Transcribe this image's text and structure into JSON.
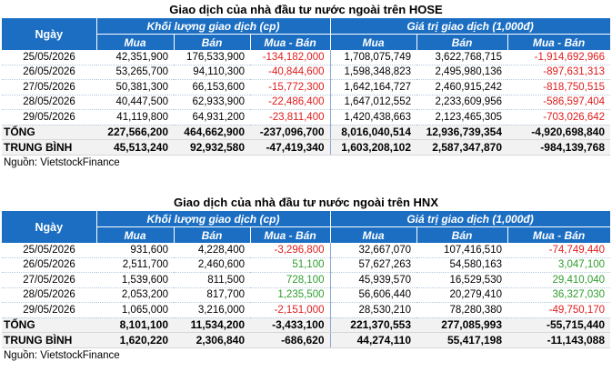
{
  "colors": {
    "header_bg": "#1b6ec2",
    "negative": "#e01b1b",
    "positive": "#2e9e2e"
  },
  "hose": {
    "title": "Giao dịch của nhà đầu tư nước ngoài trên HOSE",
    "header_day": "Ngày",
    "group_volume": "Khối lượng giao dịch (cp)",
    "group_value": "Giá trị giao dịch (1,000đ)",
    "sub": [
      "Mua",
      "Bán",
      "Mua - Bán",
      "Mua",
      "Bán",
      "Mua - Bán"
    ],
    "rows": [
      {
        "date": "25/05/2026",
        "vals": [
          "42,351,900",
          "176,533,900",
          "-134,182,000",
          "1,708,075,749",
          "3,622,768,715",
          "-1,914,692,966"
        ],
        "signs": [
          "",
          "",
          "neg",
          "",
          "",
          "neg"
        ]
      },
      {
        "date": "26/05/2026",
        "vals": [
          "53,265,700",
          "94,110,300",
          "-40,844,600",
          "1,598,348,823",
          "2,495,980,136",
          "-897,631,313"
        ],
        "signs": [
          "",
          "",
          "neg",
          "",
          "",
          "neg"
        ]
      },
      {
        "date": "27/05/2026",
        "vals": [
          "50,381,300",
          "66,153,600",
          "-15,772,300",
          "1,642,164,727",
          "2,460,915,242",
          "-818,750,515"
        ],
        "signs": [
          "",
          "",
          "neg",
          "",
          "",
          "neg"
        ]
      },
      {
        "date": "28/05/2026",
        "vals": [
          "40,447,500",
          "62,933,900",
          "-22,486,400",
          "1,647,012,552",
          "2,233,609,956",
          "-586,597,404"
        ],
        "signs": [
          "",
          "",
          "neg",
          "",
          "",
          "neg"
        ]
      },
      {
        "date": "29/05/2026",
        "vals": [
          "41,119,800",
          "64,931,200",
          "-23,811,400",
          "1,420,438,663",
          "2,123,465,305",
          "-703,026,642"
        ],
        "signs": [
          "",
          "",
          "neg",
          "",
          "",
          "neg"
        ]
      }
    ],
    "total": {
      "label": "TỔNG",
      "vals": [
        "227,566,200",
        "464,662,900",
        "-237,096,700",
        "8,016,040,514",
        "12,936,739,354",
        "-4,920,698,840"
      ]
    },
    "average": {
      "label": "TRUNG BÌNH",
      "vals": [
        "45,513,240",
        "92,932,580",
        "-47,419,340",
        "1,603,208,102",
        "2,587,347,870",
        "-984,139,768"
      ]
    },
    "source": "Nguồn: VietstockFinance"
  },
  "hnx": {
    "title": "Giao dịch của nhà đầu tư nước ngoài trên HNX",
    "header_day": "Ngày",
    "group_volume": "Khối lượng giao dịch (cp)",
    "group_value": "Giá trị giao dịch (1,000đ)",
    "sub": [
      "Mua",
      "Bán",
      "Mua - Bán",
      "Mua",
      "Bán",
      "Mua - Bán"
    ],
    "rows": [
      {
        "date": "25/05/2026",
        "vals": [
          "931,600",
          "4,228,400",
          "-3,296,800",
          "32,667,070",
          "107,416,510",
          "-74,749,440"
        ],
        "signs": [
          "",
          "",
          "neg",
          "",
          "",
          "neg"
        ]
      },
      {
        "date": "26/05/2026",
        "vals": [
          "2,511,700",
          "2,460,600",
          "51,100",
          "57,627,263",
          "54,580,163",
          "3,047,100"
        ],
        "signs": [
          "",
          "",
          "pos",
          "",
          "",
          "pos"
        ]
      },
      {
        "date": "27/05/2026",
        "vals": [
          "1,539,600",
          "811,500",
          "728,100",
          "45,939,570",
          "16,529,530",
          "29,410,040"
        ],
        "signs": [
          "",
          "",
          "pos",
          "",
          "",
          "pos"
        ]
      },
      {
        "date": "28/05/2026",
        "vals": [
          "2,053,200",
          "817,700",
          "1,235,500",
          "56,606,440",
          "20,279,410",
          "36,327,030"
        ],
        "signs": [
          "",
          "",
          "pos",
          "",
          "",
          "pos"
        ]
      },
      {
        "date": "29/05/2026",
        "vals": [
          "1,065,000",
          "3,216,000",
          "-2,151,000",
          "28,530,210",
          "78,280,380",
          "-49,750,170"
        ],
        "signs": [
          "",
          "",
          "neg",
          "",
          "",
          "neg"
        ]
      }
    ],
    "total": {
      "label": "TỔNG",
      "vals": [
        "8,101,100",
        "11,534,200",
        "-3,433,100",
        "221,370,553",
        "277,085,993",
        "-55,715,440"
      ]
    },
    "average": {
      "label": "TRUNG BÌNH",
      "vals": [
        "1,620,220",
        "2,306,840",
        "-686,620",
        "44,274,110",
        "55,417,198",
        "-11,143,088"
      ]
    },
    "source": "Nguồn: VietstockFinance"
  }
}
